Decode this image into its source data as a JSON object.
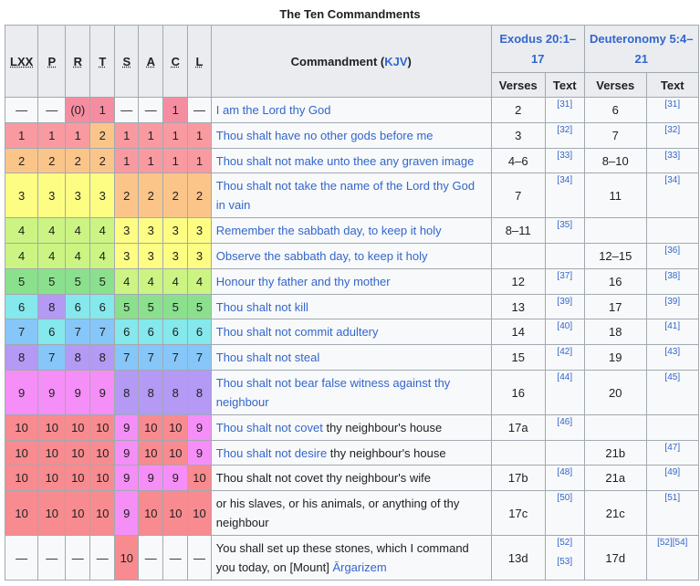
{
  "caption": "The Ten Commandments",
  "headers": {
    "traditions": [
      "LXX",
      "P",
      "R",
      "T",
      "S",
      "A",
      "C",
      "L"
    ],
    "commandment_prefix": "Commandment (",
    "commandment_link": "KJV",
    "commandment_suffix": ")",
    "exodus": "Exodus 20:1–17",
    "deuteronomy": "Deuteronomy 5:4–21",
    "verses": "Verses",
    "text": "Text"
  },
  "rows": [
    {
      "n": [
        "—",
        "—",
        "(0)",
        "1",
        "—",
        "—",
        "1",
        "—"
      ],
      "colors": [
        "w",
        "w",
        "hl",
        "hl",
        "w",
        "w",
        "hl",
        "w"
      ],
      "link": "I am the Lord thy God",
      "rest": "",
      "ex_v": "2",
      "ex_t": "[31]",
      "dt_v": "6",
      "dt_t": "[31]"
    },
    {
      "n": [
        "1",
        "1",
        "1",
        "2",
        "1",
        "1",
        "1",
        "1"
      ],
      "colors": [
        "pink",
        "pink",
        "pink",
        "orange",
        "pink",
        "pink",
        "pink",
        "pink"
      ],
      "link": "Thou shalt have no other gods before me",
      "rest": "",
      "ex_v": "3",
      "ex_t": "[32]",
      "dt_v": "7",
      "dt_t": "[32]"
    },
    {
      "n": [
        "2",
        "2",
        "2",
        "2",
        "1",
        "1",
        "1",
        "1"
      ],
      "colors": [
        "orange",
        "orange",
        "orange",
        "orange",
        "pink",
        "pink",
        "pink",
        "pink"
      ],
      "link": "Thou shalt not make unto thee any graven image",
      "rest": "",
      "ex_v": "4–6",
      "ex_t": "[33]",
      "dt_v": "8–10",
      "dt_t": "[33]"
    },
    {
      "n": [
        "3",
        "3",
        "3",
        "3",
        "2",
        "2",
        "2",
        "2"
      ],
      "colors": [
        "yellow",
        "yellow",
        "yellow",
        "yellow",
        "orange",
        "orange",
        "orange",
        "orange"
      ],
      "link": "Thou shalt not take the name of the Lord thy God in vain",
      "rest": "",
      "ex_v": "7",
      "ex_t": "[34]",
      "dt_v": "11",
      "dt_t": "[34]"
    },
    {
      "n": [
        "4",
        "4",
        "4",
        "4",
        "3",
        "3",
        "3",
        "3"
      ],
      "colors": [
        "lgreen",
        "lgreen",
        "lgreen",
        "lgreen",
        "yellow",
        "yellow",
        "yellow",
        "yellow"
      ],
      "link": "Remember the sabbath day, to keep it holy",
      "rest": "",
      "ex_v": "8–11",
      "ex_t": "[35]",
      "dt_v": "",
      "dt_t": ""
    },
    {
      "n": [
        "4",
        "4",
        "4",
        "4",
        "3",
        "3",
        "3",
        "3"
      ],
      "colors": [
        "lgreen",
        "lgreen",
        "lgreen",
        "lgreen",
        "yellow",
        "yellow",
        "yellow",
        "yellow"
      ],
      "link": "Observe the sabbath day, to keep it holy",
      "rest": "",
      "ex_v": "",
      "ex_t": "",
      "dt_v": "12–15",
      "dt_t": "[36]"
    },
    {
      "n": [
        "5",
        "5",
        "5",
        "5",
        "4",
        "4",
        "4",
        "4"
      ],
      "colors": [
        "green",
        "green",
        "green",
        "green",
        "lgreen",
        "lgreen",
        "lgreen",
        "lgreen"
      ],
      "link": "Honour thy father and thy mother",
      "rest": "",
      "ex_v": "12",
      "ex_t": "[37]",
      "dt_v": "16",
      "dt_t": "[38]"
    },
    {
      "n": [
        "6",
        "8",
        "6",
        "6",
        "5",
        "5",
        "5",
        "5"
      ],
      "colors": [
        "cyan",
        "purple",
        "cyan",
        "cyan",
        "green",
        "green",
        "green",
        "green"
      ],
      "link": "Thou shalt not kill",
      "rest": "",
      "ex_v": "13",
      "ex_t": "[39]",
      "dt_v": "17",
      "dt_t": "[39]"
    },
    {
      "n": [
        "7",
        "6",
        "7",
        "7",
        "6",
        "6",
        "6",
        "6"
      ],
      "colors": [
        "blue",
        "cyan",
        "blue",
        "blue",
        "cyan",
        "cyan",
        "cyan",
        "cyan"
      ],
      "link": "Thou shalt not commit adultery",
      "rest": "",
      "ex_v": "14",
      "ex_t": "[40]",
      "dt_v": "18",
      "dt_t": "[41]"
    },
    {
      "n": [
        "8",
        "7",
        "8",
        "8",
        "7",
        "7",
        "7",
        "7"
      ],
      "colors": [
        "purple",
        "blue",
        "purple",
        "purple",
        "blue",
        "blue",
        "blue",
        "blue"
      ],
      "link": "Thou shalt not steal",
      "rest": "",
      "ex_v": "15",
      "ex_t": "[42]",
      "dt_v": "19",
      "dt_t": "[43]"
    },
    {
      "n": [
        "9",
        "9",
        "9",
        "9",
        "8",
        "8",
        "8",
        "8"
      ],
      "colors": [
        "magenta",
        "magenta",
        "magenta",
        "magenta",
        "purple",
        "purple",
        "purple",
        "purple"
      ],
      "link": "Thou shalt not bear false witness against thy neighbour",
      "rest": "",
      "ex_v": "16",
      "ex_t": "[44]",
      "dt_v": "20",
      "dt_t": "[45]"
    },
    {
      "n": [
        "10",
        "10",
        "10",
        "10",
        "9",
        "10",
        "10",
        "9"
      ],
      "colors": [
        "salmon",
        "salmon",
        "salmon",
        "salmon",
        "magenta",
        "salmon",
        "salmon",
        "magenta"
      ],
      "link": "Thou shalt not covet",
      "rest": " thy neighbour's house",
      "ex_v": "17a",
      "ex_t": "[46]",
      "dt_v": "",
      "dt_t": ""
    },
    {
      "n": [
        "10",
        "10",
        "10",
        "10",
        "9",
        "10",
        "10",
        "9"
      ],
      "colors": [
        "salmon",
        "salmon",
        "salmon",
        "salmon",
        "magenta",
        "salmon",
        "salmon",
        "magenta"
      ],
      "link": "Thou shalt not desire",
      "rest": " thy neighbour's house",
      "ex_v": "",
      "ex_t": "",
      "dt_v": "21b",
      "dt_t": "[47]"
    },
    {
      "n": [
        "10",
        "10",
        "10",
        "10",
        "9",
        "9",
        "9",
        "10"
      ],
      "colors": [
        "salmon",
        "salmon",
        "salmon",
        "salmon",
        "magenta",
        "magenta",
        "magenta",
        "salmon"
      ],
      "link": "",
      "rest": "Thou shalt not covet thy neighbour's wife",
      "ex_v": "17b",
      "ex_t": "[48]",
      "dt_v": "21a",
      "dt_t": "[49]"
    },
    {
      "n": [
        "10",
        "10",
        "10",
        "10",
        "9",
        "10",
        "10",
        "10"
      ],
      "colors": [
        "salmon",
        "salmon",
        "salmon",
        "salmon",
        "magenta",
        "salmon",
        "salmon",
        "salmon"
      ],
      "link": "",
      "rest": "or his slaves, or his animals, or anything of thy neighbour",
      "ex_v": "17c",
      "ex_t": "[50]",
      "dt_v": "21c",
      "dt_t": "[51]"
    },
    {
      "n": [
        "—",
        "—",
        "—",
        "—",
        "10",
        "—",
        "—",
        "—"
      ],
      "colors": [
        "w",
        "w",
        "w",
        "w",
        "salmon",
        "w",
        "w",
        "w"
      ],
      "link": "",
      "rest": "You shall set up these stones, which I command you today, on [Mount] ",
      "rest_link": "Ārgarizem",
      "ex_v": "13d",
      "ex_t": "[52]",
      "ex_t2": "[53]",
      "dt_v": "17d",
      "dt_t": "[52][54]"
    }
  ]
}
